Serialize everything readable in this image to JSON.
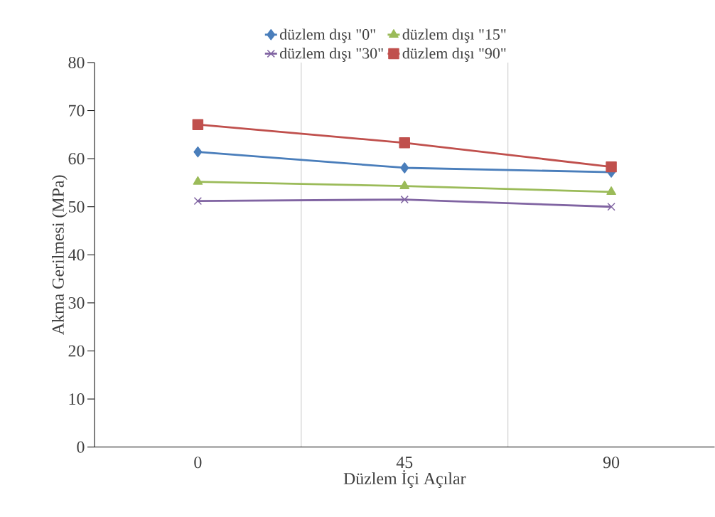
{
  "chart_data": {
    "type": "line",
    "xlabel": "Düzlem İçi Açılar",
    "ylabel": "Akma Gerilmesi (MPa)",
    "categories": [
      "0",
      "45",
      "90"
    ],
    "series": [
      {
        "name": "düzlem dışı \"0\"",
        "color": "#4a7ebb",
        "marker": "diamond",
        "values": [
          61.4,
          58.1,
          57.2
        ]
      },
      {
        "name": "düzlem dışı \"15\"",
        "color": "#9bbb59",
        "marker": "triangle",
        "values": [
          55.2,
          54.3,
          53.1
        ]
      },
      {
        "name": "düzlem dışı \"30\"",
        "color": "#8064a2",
        "marker": "cross",
        "values": [
          51.2,
          51.5,
          50.0
        ]
      },
      {
        "name": "düzlem dışı \"90\"",
        "color": "#c0504d",
        "marker": "square",
        "values": [
          67.1,
          63.3,
          58.3
        ]
      }
    ],
    "ylim": [
      0,
      80
    ],
    "yticks": [
      0,
      10,
      20,
      30,
      40,
      50,
      60,
      70,
      80
    ],
    "grid": "x",
    "legend": "top",
    "line_style": "solid"
  }
}
